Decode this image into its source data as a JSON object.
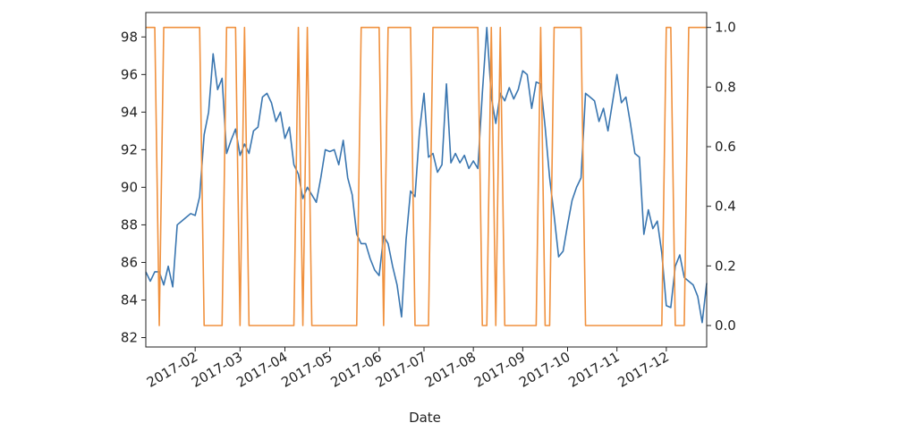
{
  "chart_data": {
    "type": "line",
    "xlabel": "Date",
    "categories": [
      null,
      null,
      null,
      null,
      null,
      null,
      null,
      null,
      null,
      null,
      null,
      "2017-02",
      null,
      null,
      null,
      null,
      null,
      null,
      null,
      null,
      null,
      "2017-03",
      null,
      null,
      null,
      null,
      null,
      null,
      null,
      null,
      null,
      "2017-04",
      null,
      null,
      null,
      null,
      null,
      null,
      null,
      null,
      null,
      "2017-05",
      null,
      null,
      null,
      null,
      null,
      null,
      null,
      null,
      null,
      null,
      "2017-06",
      null,
      null,
      null,
      null,
      null,
      null,
      null,
      null,
      null,
      "2017-07",
      null,
      null,
      null,
      null,
      null,
      null,
      null,
      null,
      null,
      null,
      "2017-08",
      null,
      null,
      null,
      null,
      null,
      null,
      null,
      null,
      null,
      null,
      "2017-09",
      null,
      null,
      null,
      null,
      null,
      null,
      null,
      null,
      null,
      "2017-10",
      null,
      null,
      null,
      null,
      null,
      null,
      null,
      null,
      null,
      null,
      "2017-11",
      null,
      null,
      null,
      null,
      null,
      null,
      null,
      null,
      null,
      null,
      "2017-12",
      null,
      null,
      null,
      null,
      null,
      null,
      null,
      null,
      null
    ],
    "series": [
      {
        "color": "#3a76b0",
        "values": [
          85.5,
          85.0,
          85.5,
          85.5,
          84.8,
          85.8,
          84.7,
          88.0,
          88.2,
          88.4,
          88.6,
          88.5,
          89.5,
          92.8,
          94.0,
          97.1,
          95.2,
          95.8,
          91.8,
          92.5,
          93.1,
          91.7,
          92.3,
          91.8,
          93.0,
          93.2,
          94.8,
          95.0,
          94.5,
          93.5,
          94.0,
          92.6,
          93.2,
          91.2,
          90.7,
          89.4,
          90.0,
          89.6,
          89.2,
          90.5,
          92.0,
          91.9,
          92.0,
          91.2,
          92.5,
          90.5,
          89.6,
          87.5,
          87.0,
          87.0,
          86.2,
          85.6,
          85.3,
          87.4,
          87.0,
          85.8,
          84.8,
          83.1,
          87.2,
          89.8,
          89.5,
          93.0,
          95.0,
          91.6,
          91.8,
          90.8,
          91.2,
          95.5,
          91.3,
          91.8,
          91.3,
          91.7,
          91.0,
          91.4,
          91.0,
          95.0,
          98.5,
          94.8,
          93.4,
          95.0,
          94.6,
          95.3,
          94.7,
          95.2,
          96.2,
          96.0,
          94.2,
          95.6,
          95.5,
          93.2,
          90.5,
          88.5,
          86.3,
          86.6,
          88.0,
          89.3,
          90.0,
          90.5,
          95.0,
          94.8,
          94.6,
          93.5,
          94.2,
          93.0,
          94.5,
          96.0,
          94.5,
          94.8,
          93.4,
          91.8,
          91.6,
          87.5,
          88.8,
          87.8,
          88.2,
          86.5,
          83.7,
          83.6,
          85.8,
          86.4,
          85.2,
          85.0,
          84.8,
          84.2,
          82.8,
          84.9
        ]
      },
      {
        "color": "#f0913e",
        "axis": "y2",
        "values": [
          1,
          1,
          1,
          0,
          1,
          1,
          1,
          1,
          1,
          1,
          1,
          1,
          1,
          0,
          0,
          0,
          0,
          0,
          1,
          1,
          1,
          0,
          1,
          0,
          0,
          0,
          0,
          0,
          0,
          0,
          0,
          0,
          0,
          0,
          1,
          0,
          1,
          0,
          0,
          0,
          0,
          0,
          0,
          0,
          0,
          0,
          0,
          0,
          1,
          1,
          1,
          1,
          1,
          0,
          1,
          1,
          1,
          1,
          1,
          1,
          0,
          0,
          0,
          0,
          1,
          1,
          1,
          1,
          1,
          1,
          1,
          1,
          1,
          1,
          1,
          0,
          0,
          1,
          0,
          1,
          0,
          0,
          0,
          0,
          0,
          0,
          0,
          0,
          1,
          0,
          0,
          1,
          1,
          1,
          1,
          1,
          1,
          1,
          0,
          0,
          0,
          0,
          0,
          0,
          0,
          0,
          0,
          0,
          0,
          0,
          0,
          0,
          0,
          0,
          0,
          0,
          1,
          1,
          0,
          0,
          0,
          1,
          1,
          1,
          1,
          1
        ]
      }
    ],
    "ylim": [
      81.5,
      99.3
    ],
    "yticks": [
      82,
      84,
      86,
      88,
      90,
      92,
      94,
      96,
      98
    ],
    "y2lim": [
      -0.072,
      1.05
    ],
    "y2ticks": [
      {
        "value": 0,
        "label": "0.0"
      },
      0.2,
      0.4,
      0.6,
      0.8,
      {
        "value": 1,
        "label": "1.0"
      }
    ]
  }
}
